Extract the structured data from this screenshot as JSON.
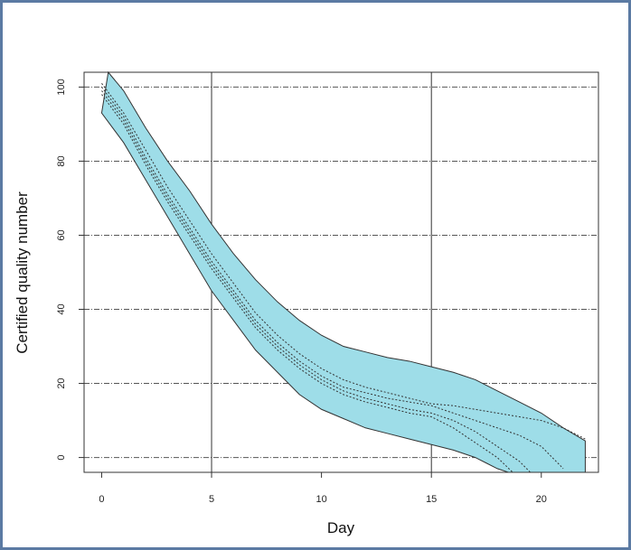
{
  "chart_data": {
    "type": "area",
    "title": "",
    "xlabel": "Day",
    "ylabel": "Certified quality number",
    "xlim": [
      -0.8,
      22.6
    ],
    "ylim": [
      -4,
      104
    ],
    "x_ticks": [
      0,
      5,
      10,
      15,
      20
    ],
    "y_ticks": [
      0,
      20,
      40,
      60,
      80,
      100
    ],
    "grid": {
      "vertical": [
        5,
        15
      ],
      "horizontal_dashed": [
        0,
        20,
        40,
        60,
        80,
        100
      ]
    },
    "band_color": "#9edde8",
    "band_outline_color": "#333333",
    "series": [
      {
        "role": "upper-bound",
        "x": [
          0.3,
          1,
          2,
          3,
          4,
          5,
          6,
          7,
          8,
          9,
          10,
          11,
          12,
          13,
          14,
          15,
          16,
          17,
          18,
          19,
          20,
          21,
          22
        ],
        "y": [
          106,
          99,
          89,
          80,
          72,
          63,
          55,
          48,
          42,
          37,
          33,
          30,
          28.5,
          27,
          26,
          24.5,
          23,
          21,
          18,
          15,
          12,
          8,
          4.5
        ]
      },
      {
        "role": "lower-bound",
        "x": [
          0,
          1,
          2,
          3,
          4,
          5,
          6,
          7,
          8,
          9,
          10,
          11,
          12,
          13,
          14,
          15,
          16,
          17,
          17.5,
          18,
          18.5
        ],
        "y": [
          93,
          85,
          75,
          65,
          55,
          45,
          37,
          29,
          23,
          17,
          13,
          10.5,
          8,
          6.5,
          5,
          3.5,
          2,
          0,
          -1.5,
          -3,
          -5
        ]
      },
      {
        "role": "estimate-1",
        "x": [
          0,
          1,
          2,
          3,
          4,
          5,
          6,
          7,
          8,
          9,
          10,
          11,
          12,
          13,
          14,
          15,
          16,
          17,
          18,
          19,
          20,
          21,
          22
        ],
        "y": [
          101,
          93,
          83,
          73,
          64,
          55,
          47,
          39,
          33,
          28,
          24,
          21,
          19,
          17.5,
          16,
          14.5,
          14,
          13,
          12,
          11,
          10,
          8,
          5
        ]
      },
      {
        "role": "estimate-2",
        "x": [
          0,
          1,
          2,
          3,
          4,
          5,
          6,
          7,
          8,
          9,
          10,
          11,
          12,
          13,
          14,
          15,
          16,
          17,
          18,
          19,
          20,
          21
        ],
        "y": [
          100,
          92,
          81,
          71,
          62,
          53,
          45,
          37,
          31,
          26,
          22,
          19,
          17.5,
          16,
          15,
          14,
          12,
          10,
          8,
          6,
          3,
          -3
        ]
      },
      {
        "role": "estimate-3",
        "x": [
          0,
          1,
          2,
          3,
          4,
          5,
          6,
          7,
          8,
          9,
          10,
          11,
          12,
          13,
          14,
          15,
          16,
          17,
          18,
          19,
          19.5
        ],
        "y": [
          99,
          91,
          80,
          70,
          61,
          52,
          44,
          36,
          30,
          25,
          21,
          18,
          16,
          14.5,
          13,
          12,
          10,
          7,
          3,
          -1,
          -4
        ]
      },
      {
        "role": "estimate-4",
        "x": [
          0,
          1,
          2,
          3,
          4,
          5,
          6,
          7,
          8,
          9,
          10,
          11,
          12,
          13,
          14,
          15,
          16,
          17,
          18,
          18.7
        ],
        "y": [
          98,
          90,
          79,
          69,
          60,
          51,
          43,
          35,
          29,
          24,
          20,
          17,
          15,
          13.5,
          12,
          11,
          8,
          4,
          0,
          -4
        ]
      }
    ]
  }
}
